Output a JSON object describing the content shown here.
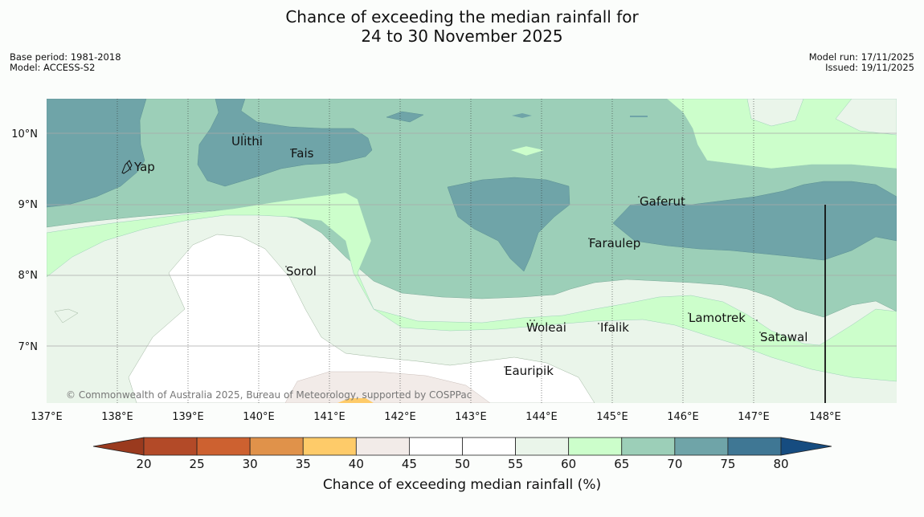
{
  "title_line1": "Chance of exceeding the median rainfall for",
  "title_line2": "24 to 30 November 2025",
  "meta_left": {
    "base_period": "Base period: 1981-2018",
    "model": "Model: ACCESS-S2"
  },
  "meta_right": {
    "model_run": "Model run: 17/11/2025",
    "issued": "Issued: 19/11/2025"
  },
  "longitude_labels": [
    "137°E",
    "138°E",
    "139°E",
    "140°E",
    "141°E",
    "142°E",
    "143°E",
    "144°E",
    "145°E",
    "146°E",
    "147°E",
    "148°E"
  ],
  "latitude_labels": [
    "10°N",
    "9°N",
    "8°N",
    "7°N"
  ],
  "places": [
    "Yap",
    "Ulithi",
    "Fais",
    "Gaferut",
    "Faraulep",
    "Sorol",
    "Woleai",
    "Ifalik",
    "Lamotrek",
    "Satawal",
    "Eauripik"
  ],
  "copyright": "© Commonwealth of Australia 2025, Bureau of Meteorology, supported by COSPPac",
  "colorbar": {
    "title": "Chance of exceeding median rainfall (%)",
    "ticks": [
      "20",
      "25",
      "30",
      "35",
      "40",
      "45",
      "50",
      "55",
      "60",
      "65",
      "70",
      "75",
      "80"
    ],
    "colors": [
      "#b34a28",
      "#cd6130",
      "#e0924a",
      "#fecb69",
      "#f2ebe8",
      "#ffffff",
      "#ffffff",
      "#eaf5ea",
      "#ccfecb",
      "#9ccfb8",
      "#6fa4a8",
      "#3f7794"
    ],
    "under_color": "#9a3a1e",
    "over_color": "#164c80"
  },
  "chance_levels": {
    "c70_75": "#6fa4a8",
    "c65_70": "#9ccfb8",
    "c60_65": "#ccfecb",
    "c55_60": "#eaf5ea",
    "c45_55": "#ffffff",
    "c40_45": "#f2ebe8",
    "c35_40": "#fecb69"
  }
}
